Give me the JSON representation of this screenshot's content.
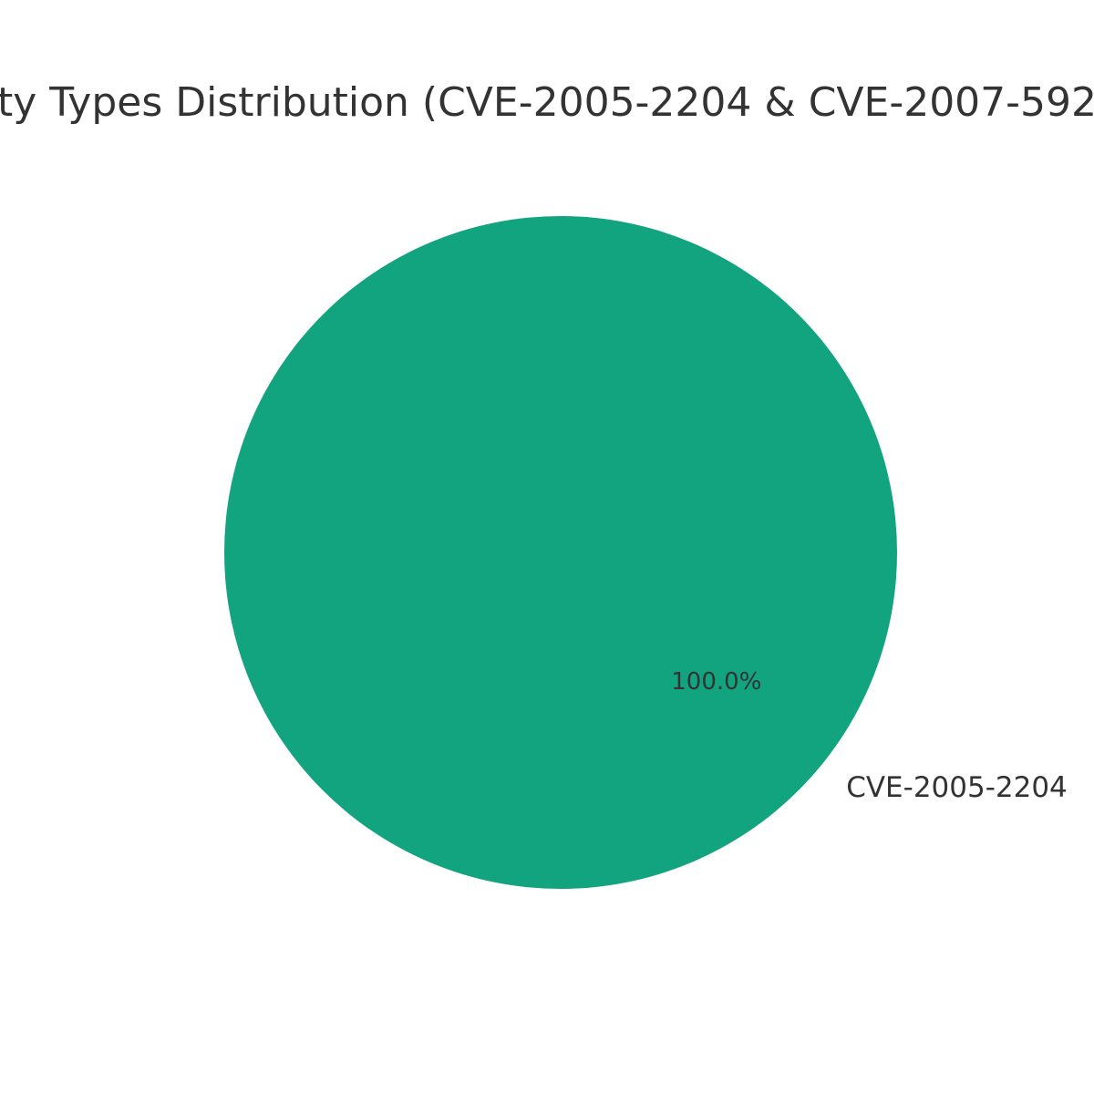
{
  "chart_data": {
    "type": "pie",
    "title": "ty Types Distribution (CVE-2005-2204 & CVE-2007-592",
    "slices": [
      {
        "label": "CVE-2005-2204",
        "value": 100.0,
        "pct_label": "100.0%",
        "color": "#12a37f"
      }
    ],
    "legend": "none"
  },
  "colors": {
    "text": "#333333",
    "background": "#ffffff"
  }
}
